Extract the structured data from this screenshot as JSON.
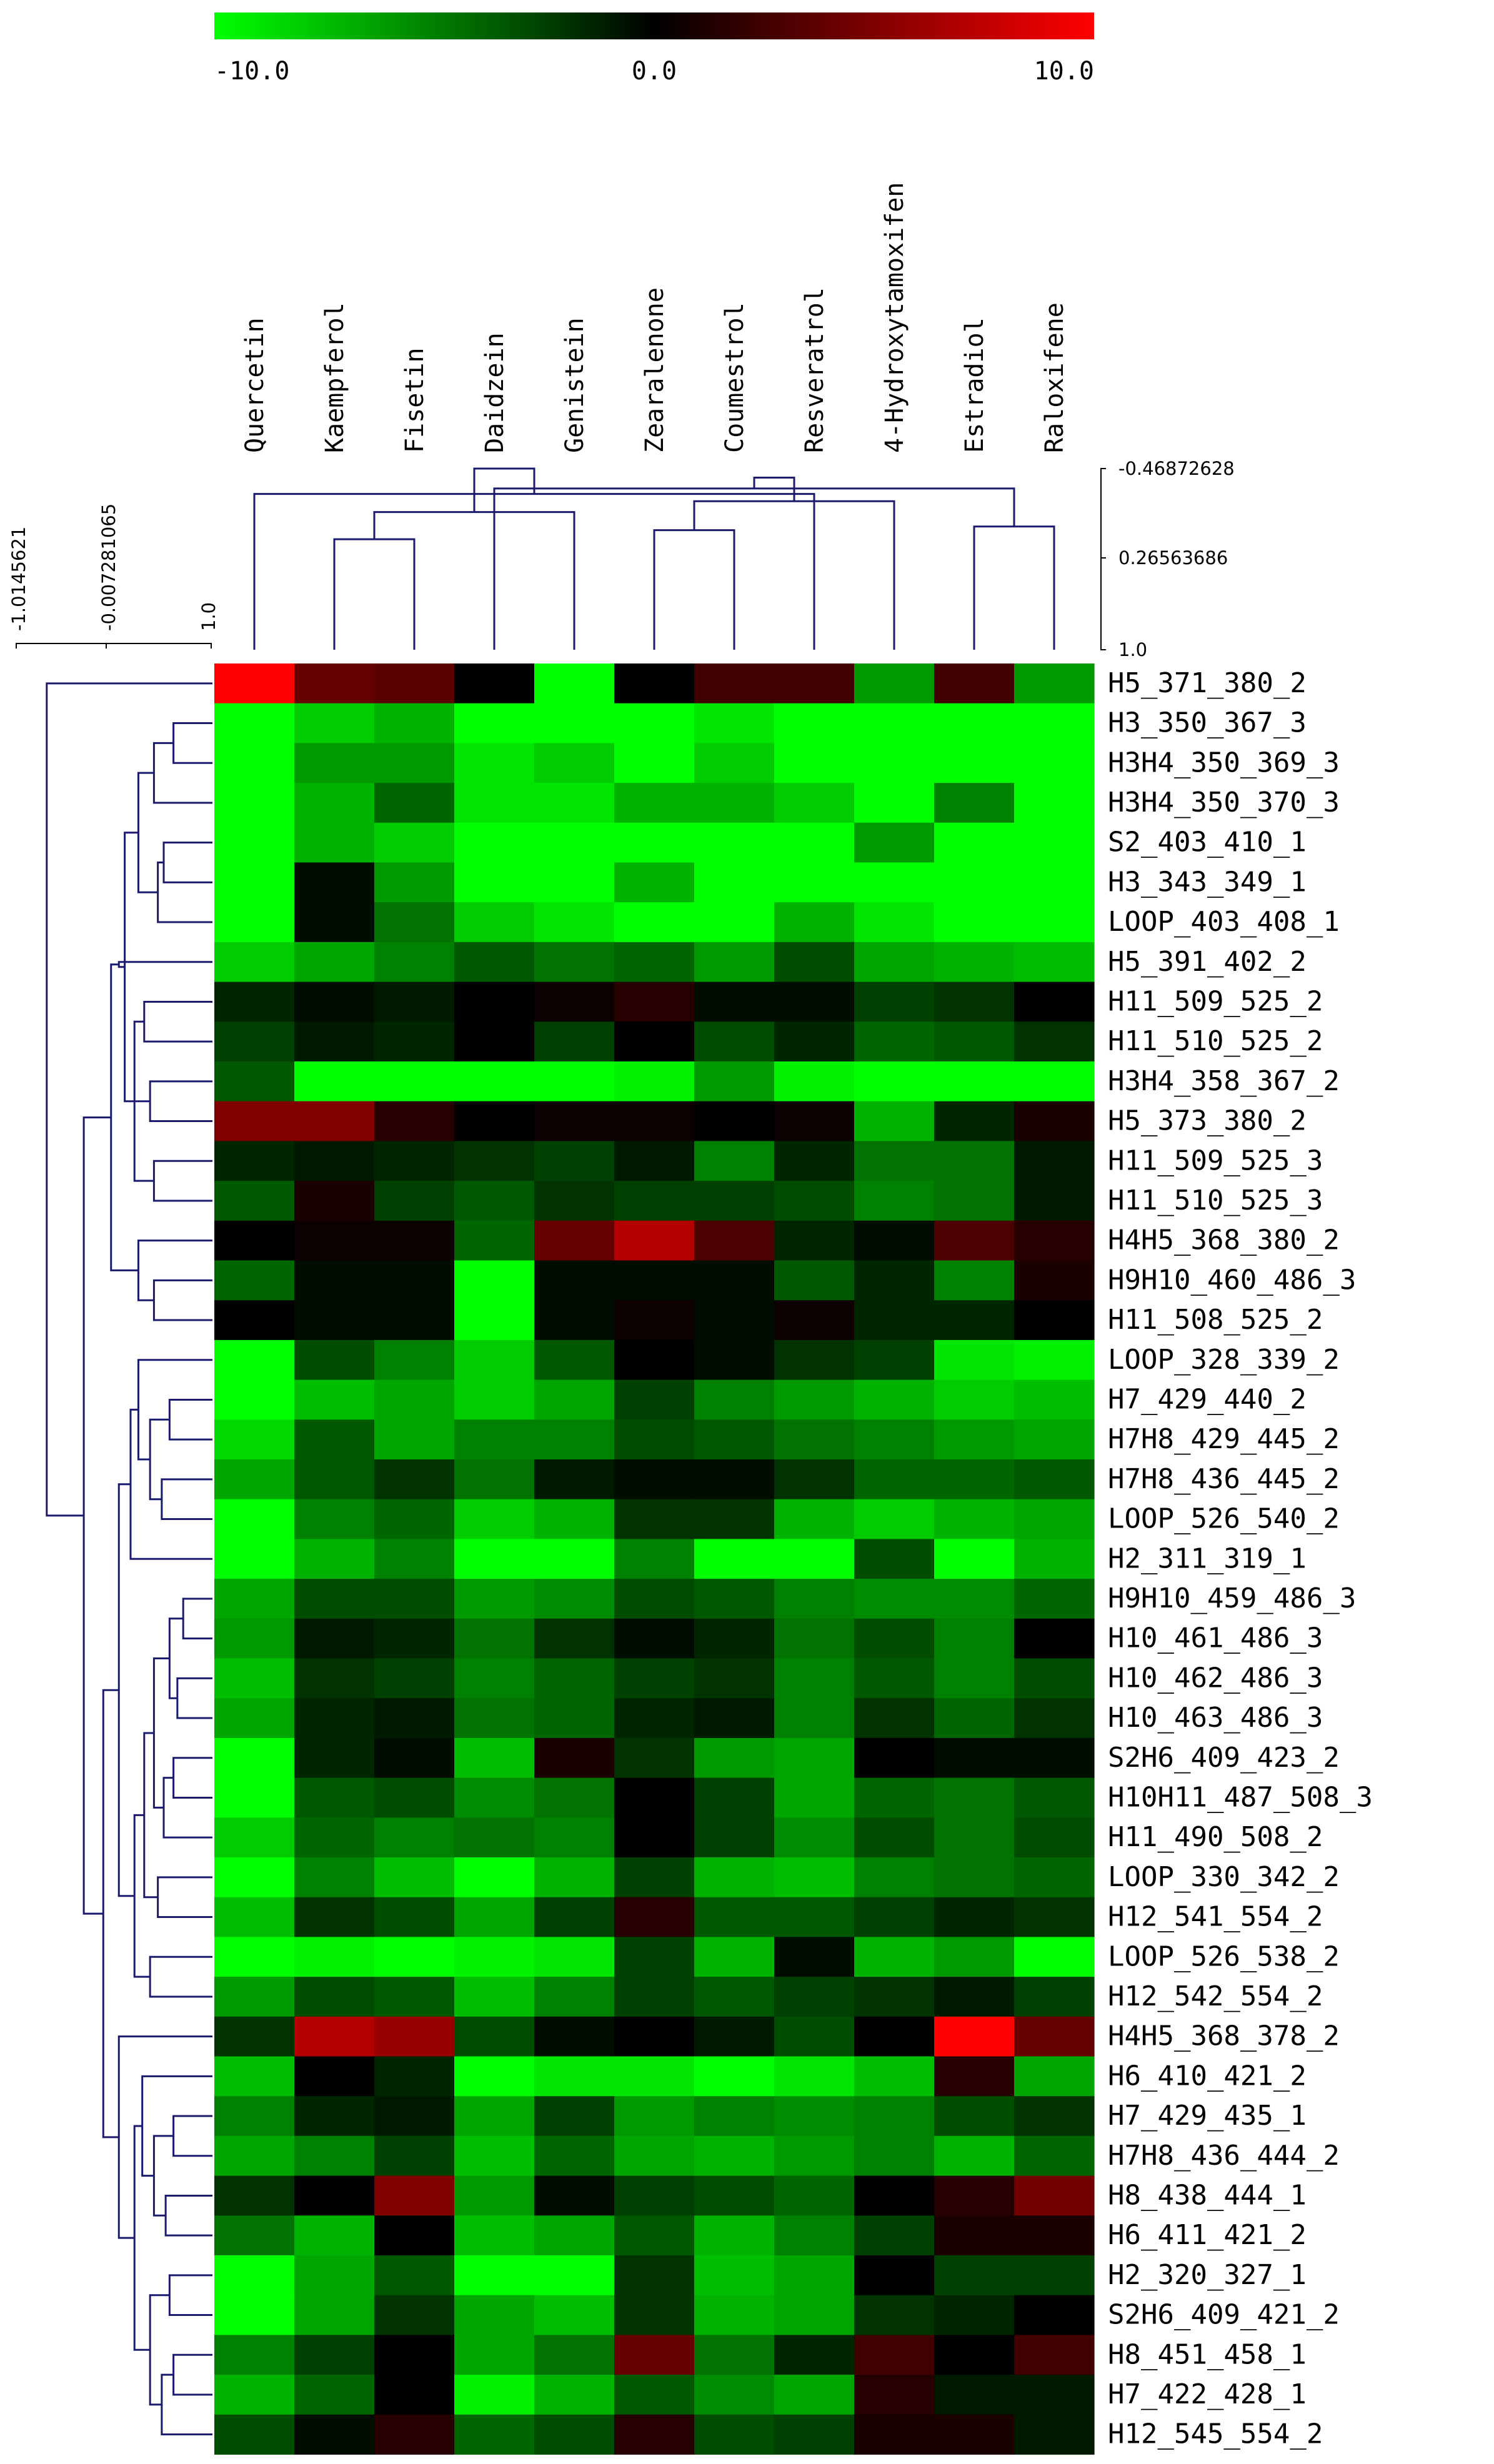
{
  "chart_data": {
    "type": "heatmap",
    "color_scale": {
      "min": -10.0,
      "mid": 0.0,
      "max": 10.0,
      "labels": [
        "-10.0",
        "0.0",
        "10.0"
      ],
      "colors": {
        "low": "#00ff00",
        "mid": "#000000",
        "high": "#ff0000"
      }
    },
    "columns": [
      "Quercetin",
      "Kaempferol",
      "Fisetin",
      "Daidzein",
      "Genistein",
      "Zearalenone",
      "Coumestrol",
      "Resveratrol",
      "4-Hydroxytamoxifen",
      "Estradiol",
      "Raloxifene"
    ],
    "rows": [
      "H5_371_380_2",
      "H3_350_367_3",
      "H3H4_350_369_3",
      "H3H4_350_370_3",
      "S2_403_410_1",
      "H3_343_349_1",
      "LOOP_403_408_1",
      "H5_391_402_2",
      "H11_509_525_2",
      "H11_510_525_2",
      "H3H4_358_367_2",
      "H5_373_380_2",
      "H11_509_525_3",
      "H11_510_525_3",
      "H4H5_368_380_2",
      "H9H10_460_486_3",
      "H11_508_525_2",
      "LOOP_328_339_2",
      "H7_429_440_2",
      "H7H8_429_445_2",
      "H7H8_436_445_2",
      "LOOP_526_540_2",
      "H2_311_319_1",
      "H9H10_459_486_3",
      "H10_461_486_3",
      "H10_462_486_3",
      "H10_463_486_3",
      "S2H6_409_423_2",
      "H10H11_487_508_3",
      "H11_490_508_2",
      "LOOP_330_342_2",
      "H12_541_554_2",
      "LOOP_526_538_2",
      "H12_542_554_2",
      "H4H5_368_378_2",
      "H6_410_421_2",
      "H7_429_435_1",
      "H7H8_436_444_2",
      "H8_438_444_1",
      "H6_411_421_2",
      "H2_320_327_1",
      "S2H6_409_421_2",
      "H8_451_458_1",
      "H7_422_428_1",
      "H12_545_554_2"
    ],
    "values": [
      [
        10,
        4,
        3.5,
        0,
        -10,
        0,
        2.5,
        2.5,
        -6,
        2.5,
        -6
      ],
      [
        -10,
        -8,
        -7,
        -10,
        -10,
        -10,
        -9,
        -10,
        -10,
        -10,
        -10
      ],
      [
        -10,
        -6,
        -6,
        -9,
        -8,
        -10,
        -8,
        -10,
        -10,
        -10,
        -10
      ],
      [
        -10,
        -7,
        -4,
        -9,
        -9,
        -7,
        -7,
        -8,
        -10,
        -5,
        -10
      ],
      [
        -10,
        -7,
        -8,
        -10,
        -10,
        -10,
        -10,
        -10,
        -6,
        -10,
        -10
      ],
      [
        -10,
        -0.5,
        -6,
        -10,
        -10,
        -7,
        -10,
        -10,
        -10,
        -10,
        -10
      ],
      [
        -10,
        -0.5,
        -4.5,
        -8,
        -9,
        -10,
        -10,
        -7,
        -9,
        -10,
        -10
      ],
      [
        -8,
        -6.5,
        -5,
        -3.5,
        -4.5,
        -4,
        -6,
        -3,
        -6.5,
        -7,
        -7.5
      ],
      [
        -1.5,
        -0.5,
        -1,
        0,
        0.5,
        1.5,
        -0.5,
        -0.5,
        -2.5,
        -2,
        0
      ],
      [
        -2.5,
        -1,
        -1.5,
        0,
        -2.5,
        0,
        -3,
        -1.5,
        -4,
        -3.5,
        -2
      ],
      [
        -3.5,
        -10,
        -10,
        -10,
        -10,
        -9.5,
        -6,
        -9.5,
        -10,
        -10,
        -10
      ],
      [
        5,
        5,
        1.5,
        0,
        0.5,
        0.5,
        0,
        0.5,
        -7,
        -1.5,
        1
      ],
      [
        -1.5,
        -1,
        -1.5,
        -2,
        -2.5,
        -1,
        -5,
        -1.5,
        -4.5,
        -4.5,
        -1
      ],
      [
        -3.5,
        1,
        -2.5,
        -3.5,
        -2,
        -2.5,
        -2.5,
        -3,
        -5,
        -4.5,
        -1
      ],
      [
        0,
        0.5,
        0.5,
        -4,
        4,
        7,
        3,
        -1.5,
        -0.5,
        3,
        1.5
      ],
      [
        -4,
        -0.5,
        -0.5,
        -10,
        -0.5,
        -0.5,
        -0.5,
        -3.5,
        -1.5,
        -5,
        1
      ],
      [
        0,
        -0.5,
        -0.5,
        -10,
        -0.5,
        0.5,
        -0.5,
        0.5,
        -1.5,
        -1.5,
        0
      ],
      [
        -10,
        -3,
        -5,
        -8,
        -3.5,
        0,
        -0.5,
        -2,
        -2.5,
        -9,
        -9.5
      ],
      [
        -10,
        -7.5,
        -6.5,
        -8,
        -6.5,
        -2.5,
        -5,
        -6,
        -7,
        -8,
        -7.5
      ],
      [
        -8.5,
        -3.5,
        -6.5,
        -5,
        -5,
        -3,
        -3.5,
        -4.5,
        -5,
        -6,
        -6.5
      ],
      [
        -6.5,
        -3.5,
        -2,
        -4.5,
        -1,
        -0.5,
        -0.5,
        -2,
        -4,
        -4,
        -3.5
      ],
      [
        -10,
        -5,
        -4,
        -8,
        -7,
        -2,
        -2,
        -7,
        -8,
        -7,
        -6.5
      ],
      [
        -10,
        -7,
        -5,
        -10,
        -10,
        -5,
        -10,
        -10,
        -3,
        -10,
        -7
      ],
      [
        -6.5,
        -3,
        -3,
        -6,
        -5.5,
        -3,
        -3.5,
        -5,
        -5.5,
        -5.5,
        -4
      ],
      [
        -6,
        -1,
        -1.5,
        -4.5,
        -2,
        -0.5,
        -1.5,
        -4.5,
        -3,
        -5,
        0
      ],
      [
        -7.5,
        -2,
        -2.5,
        -5,
        -4,
        -2.5,
        -2,
        -5,
        -3.5,
        -5,
        -3
      ],
      [
        -6.5,
        -1.5,
        -1,
        -4.5,
        -4,
        -1.5,
        -1,
        -5,
        -2,
        -4,
        -2
      ],
      [
        -10,
        -1.5,
        -0.5,
        -7.5,
        1,
        -2,
        -6,
        -6.5,
        0,
        -0.5,
        -0.5
      ],
      [
        -10,
        -3.5,
        -3,
        -5.5,
        -4.5,
        0,
        -2.5,
        -6.5,
        -4,
        -4.5,
        -3.5
      ],
      [
        -8,
        -4,
        -5,
        -4.5,
        -5,
        0,
        -2.5,
        -5.5,
        -3,
        -4.5,
        -3
      ],
      [
        -10,
        -5,
        -7.5,
        -10,
        -7,
        -2.5,
        -7,
        -7.5,
        -5,
        -4.5,
        -4
      ],
      [
        -7.5,
        -2,
        -3,
        -6.5,
        -2.5,
        1.5,
        -3.5,
        -3.5,
        -2.5,
        -1.5,
        -2
      ],
      [
        -10,
        -9.5,
        -10,
        -9.5,
        -9,
        -2.5,
        -7,
        -0.5,
        -7,
        -6,
        -10
      ],
      [
        -6,
        -3,
        -3.5,
        -7.5,
        -5,
        -2.5,
        -3.5,
        -2.5,
        -2,
        -1,
        -2.5
      ],
      [
        -2,
        7,
        6,
        -3,
        -0.5,
        0,
        -1,
        -3,
        0,
        10,
        4
      ],
      [
        -7.5,
        0,
        -1.5,
        -10,
        -9,
        -9,
        -10,
        -9,
        -7.5,
        1.5,
        -6.5
      ],
      [
        -5,
        -1.5,
        -1,
        -6.5,
        -2.5,
        -6,
        -5,
        -5.5,
        -5,
        -3,
        -2
      ],
      [
        -6.5,
        -5,
        -2.5,
        -7.5,
        -4,
        -6.5,
        -7,
        -6,
        -5,
        -7,
        -4
      ],
      [
        -2,
        0,
        5,
        -6,
        -0.5,
        -2.5,
        -3,
        -4,
        0,
        1.5,
        4.5
      ],
      [
        -4.5,
        -7,
        0,
        -7.5,
        -6.5,
        -3.5,
        -7,
        -5,
        -2.5,
        1,
        1
      ],
      [
        -10,
        -6.5,
        -3.5,
        -10,
        -10,
        -2,
        -7.5,
        -6.5,
        0,
        -2.5,
        -2.5
      ],
      [
        -10,
        -6.5,
        -2,
        -6.5,
        -7.5,
        -2,
        -7,
        -6.5,
        -2,
        -1.5,
        0
      ],
      [
        -5,
        -2.5,
        0,
        -6.5,
        -4.5,
        4,
        -4.5,
        -1.5,
        2.5,
        0,
        2.5
      ],
      [
        -7,
        -4,
        0,
        -9.5,
        -7,
        -3.5,
        -5.5,
        -6.5,
        1.5,
        -1,
        -1
      ],
      [
        -3,
        -0.5,
        1.5,
        -4,
        -3,
        1.5,
        -3,
        -2.5,
        1,
        1,
        -1
      ]
    ],
    "column_dendrogram_axis": [
      "-0.46872628",
      "0.26563686",
      "1.0"
    ],
    "row_dendrogram_axis": [
      "-1.0145621",
      "-0.007281065",
      "1.0"
    ]
  }
}
